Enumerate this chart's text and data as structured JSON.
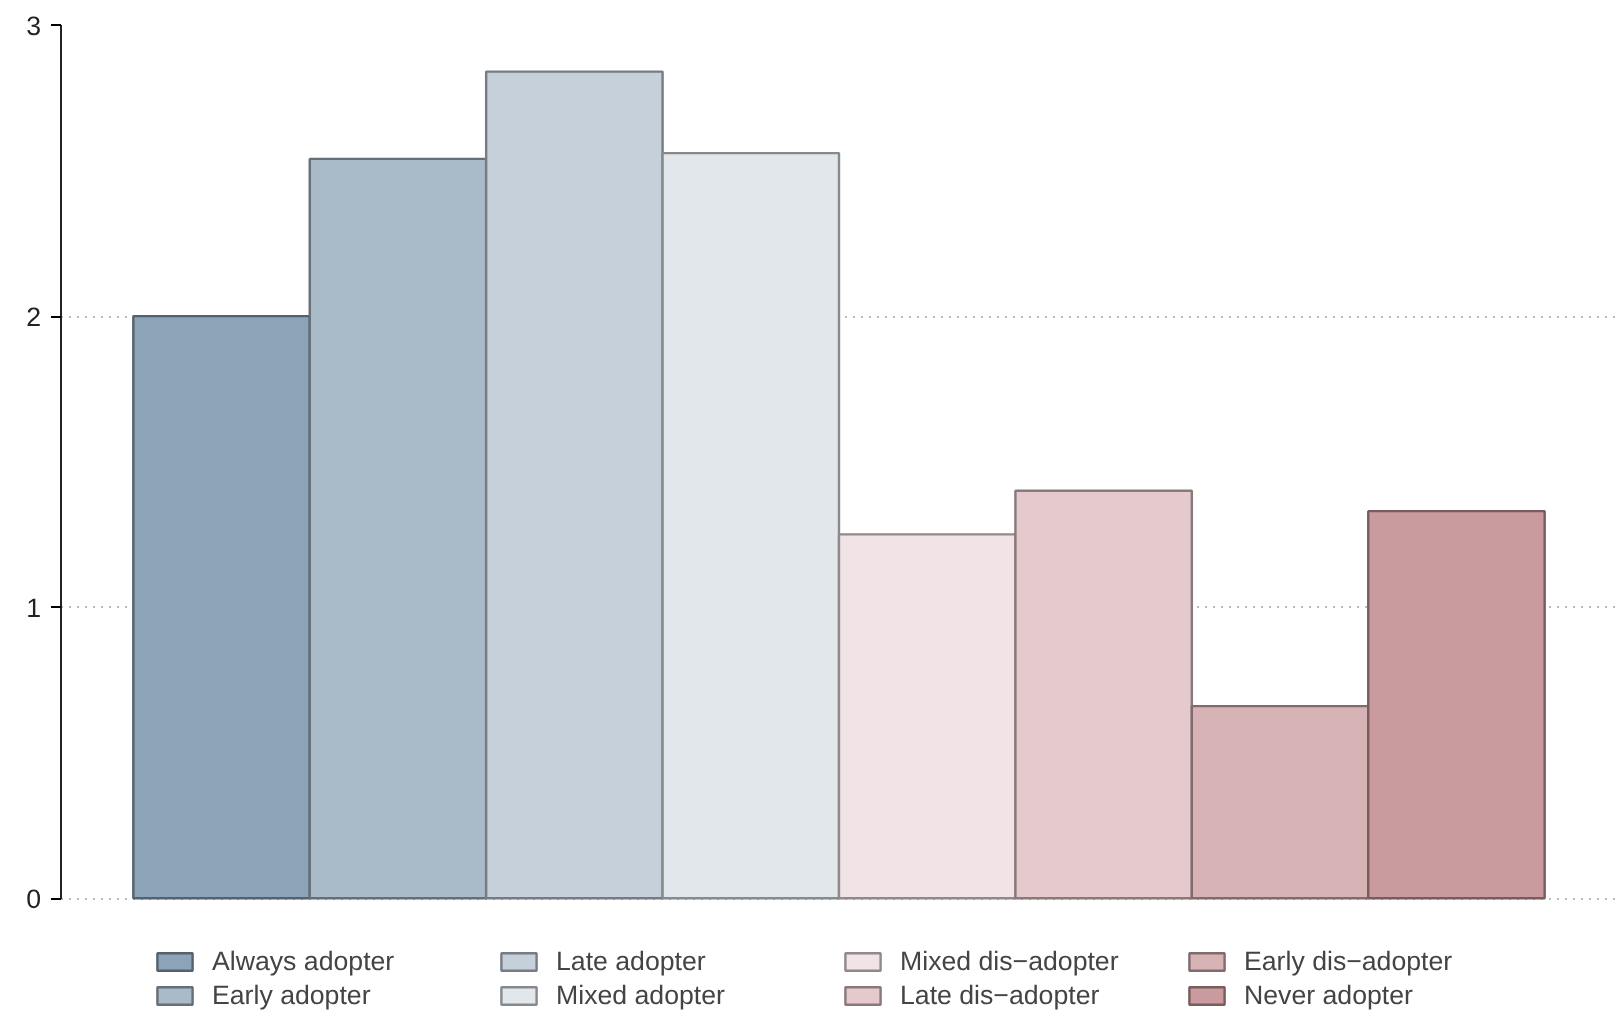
{
  "chart_data": {
    "type": "bar",
    "categories": [
      null
    ],
    "series": [
      {
        "name": "Always adopter",
        "color": "#8da3b8",
        "values": [
          2.0
        ]
      },
      {
        "name": "Early adopter",
        "color": "#a9bac9",
        "values": [
          2.54
        ]
      },
      {
        "name": "Late adopter",
        "color": "#c6d0db",
        "values": [
          2.84
        ]
      },
      {
        "name": "Mixed adopter",
        "color": "#e2e7ec",
        "values": [
          2.56
        ]
      },
      {
        "name": "Mixed dis−adopter",
        "color": "#f2e4e6",
        "values": [
          1.25
        ]
      },
      {
        "name": "Late dis−adopter",
        "color": "#e5cacd",
        "values": [
          1.4
        ]
      },
      {
        "name": "Early dis−adopter",
        "color": "#d8b3b6",
        "values": [
          0.66
        ]
      },
      {
        "name": "Never adopter",
        "color": "#c99a9e",
        "values": [
          1.33
        ]
      }
    ],
    "ylim": [
      0,
      3
    ],
    "yticks": [
      0,
      1,
      2,
      3
    ],
    "grid": "y",
    "legend": "bottom"
  }
}
